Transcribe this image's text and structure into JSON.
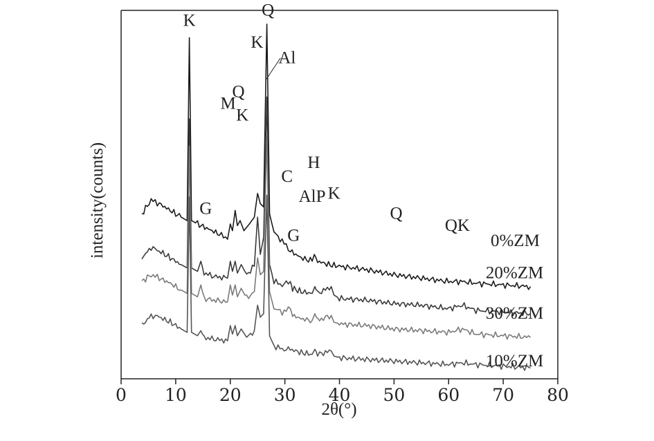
{
  "chart_data": {
    "type": "line",
    "xlabel": "2θ(°)",
    "ylabel": "intensity(counts)",
    "xlim": [
      0,
      80
    ],
    "xticks": [
      0,
      10,
      20,
      30,
      40,
      50,
      60,
      70,
      80
    ],
    "grid": false,
    "y_ticks_shown": false,
    "series": [
      {
        "name": "0%ZM",
        "color": "#1a1a1a",
        "baseline": 0.82,
        "points": [
          [
            3.8,
            0.86
          ],
          [
            5.5,
            0.94
          ],
          [
            7,
            0.92
          ],
          [
            9,
            0.88
          ],
          [
            11,
            0.84
          ],
          [
            12.1,
            0.82
          ],
          [
            12.5,
            1.9
          ],
          [
            12.9,
            0.82
          ],
          [
            14,
            0.8
          ],
          [
            16,
            0.77
          ],
          [
            18,
            0.74
          ],
          [
            19.5,
            0.71
          ],
          [
            20,
            0.8
          ],
          [
            20.4,
            0.76
          ],
          [
            20.9,
            0.88
          ],
          [
            21.3,
            0.79
          ],
          [
            21.8,
            0.82
          ],
          [
            22.5,
            0.76
          ],
          [
            23.5,
            0.8
          ],
          [
            24.4,
            0.84
          ],
          [
            25,
            0.98
          ],
          [
            25.5,
            0.92
          ],
          [
            26.1,
            0.9
          ],
          [
            26.7,
            1.98
          ],
          [
            27.2,
            0.86
          ],
          [
            28,
            0.75
          ],
          [
            29.5,
            0.7
          ],
          [
            31,
            0.64
          ],
          [
            33,
            0.6
          ],
          [
            35,
            0.58
          ],
          [
            35.4,
            0.62
          ],
          [
            36,
            0.58
          ],
          [
            38,
            0.56
          ],
          [
            40,
            0.55
          ],
          [
            45,
            0.53
          ],
          [
            50,
            0.5
          ],
          [
            55,
            0.48
          ],
          [
            60,
            0.46
          ],
          [
            62.5,
            0.46
          ],
          [
            65,
            0.45
          ],
          [
            70,
            0.44
          ],
          [
            75,
            0.43
          ]
        ]
      },
      {
        "name": "20%ZM",
        "color": "#3a3a3a",
        "baseline": 0.58,
        "points": [
          [
            3.8,
            0.6
          ],
          [
            5.5,
            0.66
          ],
          [
            7,
            0.64
          ],
          [
            9,
            0.6
          ],
          [
            11,
            0.56
          ],
          [
            12.1,
            0.54
          ],
          [
            12.5,
            1.42
          ],
          [
            12.9,
            0.54
          ],
          [
            14,
            0.52
          ],
          [
            14.6,
            0.58
          ],
          [
            15.2,
            0.51
          ],
          [
            17,
            0.49
          ],
          [
            19.5,
            0.48
          ],
          [
            20,
            0.58
          ],
          [
            20.4,
            0.52
          ],
          [
            20.9,
            0.58
          ],
          [
            21.3,
            0.51
          ],
          [
            22,
            0.56
          ],
          [
            23,
            0.5
          ],
          [
            24.4,
            0.55
          ],
          [
            25,
            0.84
          ],
          [
            25.5,
            0.62
          ],
          [
            26.1,
            0.72
          ],
          [
            26.7,
            1.55
          ],
          [
            27.2,
            0.56
          ],
          [
            28,
            0.46
          ],
          [
            29.5,
            0.44
          ],
          [
            31,
            0.46
          ],
          [
            31.4,
            0.42
          ],
          [
            33,
            0.4
          ],
          [
            35,
            0.39
          ],
          [
            35.5,
            0.43
          ],
          [
            36,
            0.39
          ],
          [
            38.5,
            0.43
          ],
          [
            39,
            0.38
          ],
          [
            40,
            0.36
          ],
          [
            45,
            0.35
          ],
          [
            50,
            0.33
          ],
          [
            55,
            0.32
          ],
          [
            60,
            0.3
          ],
          [
            62.5,
            0.32
          ],
          [
            65,
            0.29
          ],
          [
            70,
            0.28
          ],
          [
            75,
            0.27
          ]
        ]
      },
      {
        "name": "30%ZM",
        "color": "#7a7a7a",
        "baseline": 0.42,
        "points": [
          [
            3.8,
            0.46
          ],
          [
            5.5,
            0.5
          ],
          [
            7,
            0.48
          ],
          [
            9,
            0.45
          ],
          [
            11,
            0.41
          ],
          [
            12.1,
            0.39
          ],
          [
            12.5,
            1.26
          ],
          [
            12.9,
            0.39
          ],
          [
            14,
            0.37
          ],
          [
            14.6,
            0.44
          ],
          [
            15.2,
            0.36
          ],
          [
            17,
            0.35
          ],
          [
            19.5,
            0.34
          ],
          [
            20,
            0.44
          ],
          [
            20.4,
            0.38
          ],
          [
            20.9,
            0.44
          ],
          [
            21.3,
            0.37
          ],
          [
            22,
            0.42
          ],
          [
            23,
            0.36
          ],
          [
            24.4,
            0.4
          ],
          [
            25,
            0.6
          ],
          [
            25.5,
            0.5
          ],
          [
            26.1,
            0.52
          ],
          [
            26.7,
            1.32
          ],
          [
            27.2,
            0.4
          ],
          [
            28,
            0.3
          ],
          [
            29.5,
            0.28
          ],
          [
            31,
            0.3
          ],
          [
            31.4,
            0.26
          ],
          [
            33,
            0.24
          ],
          [
            35,
            0.23
          ],
          [
            35.5,
            0.27
          ],
          [
            36,
            0.23
          ],
          [
            38.5,
            0.26
          ],
          [
            39,
            0.22
          ],
          [
            40,
            0.21
          ],
          [
            45,
            0.2
          ],
          [
            50,
            0.18
          ],
          [
            55,
            0.17
          ],
          [
            60,
            0.16
          ],
          [
            62.5,
            0.18
          ],
          [
            65,
            0.15
          ],
          [
            70,
            0.14
          ],
          [
            75,
            0.13
          ]
        ]
      },
      {
        "name": "10%ZM",
        "color": "#555555",
        "baseline": 0.2,
        "points": [
          [
            3.8,
            0.2
          ],
          [
            5.5,
            0.26
          ],
          [
            7,
            0.25
          ],
          [
            9,
            0.22
          ],
          [
            11,
            0.18
          ],
          [
            12.1,
            0.16
          ],
          [
            12.5,
            0.96
          ],
          [
            12.9,
            0.16
          ],
          [
            14,
            0.14
          ],
          [
            14.6,
            0.17
          ],
          [
            15.2,
            0.13
          ],
          [
            17,
            0.12
          ],
          [
            19.5,
            0.11
          ],
          [
            20,
            0.2
          ],
          [
            20.4,
            0.15
          ],
          [
            20.9,
            0.2
          ],
          [
            21.3,
            0.14
          ],
          [
            22,
            0.18
          ],
          [
            23,
            0.13
          ],
          [
            24.4,
            0.17
          ],
          [
            25,
            0.32
          ],
          [
            25.5,
            0.25
          ],
          [
            26.1,
            0.27
          ],
          [
            26.7,
            0.97
          ],
          [
            27.2,
            0.14
          ],
          [
            28,
            0.08
          ],
          [
            29.5,
            0.06
          ],
          [
            31,
            0.06
          ],
          [
            33,
            0.04
          ],
          [
            35,
            0.03
          ],
          [
            35.5,
            0.06
          ],
          [
            36,
            0.03
          ],
          [
            38.5,
            0.05
          ],
          [
            39,
            0.02
          ],
          [
            40,
            0.01
          ],
          [
            45,
            0.0
          ],
          [
            50,
            -0.01
          ],
          [
            55,
            -0.02
          ],
          [
            60,
            -0.03
          ],
          [
            62.5,
            -0.02
          ],
          [
            65,
            -0.03
          ],
          [
            70,
            -0.04
          ],
          [
            75,
            -0.05
          ]
        ]
      }
    ],
    "peak_labels": [
      {
        "text": "K",
        "x": 12.5,
        "y": 1.97
      },
      {
        "text": "Q",
        "x": 26.9,
        "y": 2.03
      },
      {
        "text": "K",
        "x": 24.9,
        "y": 1.84
      },
      {
        "text": "Al",
        "x": 30.4,
        "y": 1.75
      },
      {
        "text": "M",
        "x": 19.6,
        "y": 1.48
      },
      {
        "text": "Q",
        "x": 21.5,
        "y": 1.55
      },
      {
        "text": "K",
        "x": 22.2,
        "y": 1.41
      },
      {
        "text": "C",
        "x": 30.4,
        "y": 1.05
      },
      {
        "text": "H",
        "x": 35.3,
        "y": 1.13
      },
      {
        "text": "AlP",
        "x": 35.0,
        "y": 0.93
      },
      {
        "text": "K",
        "x": 39.0,
        "y": 0.95
      },
      {
        "text": "Q",
        "x": 50.4,
        "y": 0.83
      },
      {
        "text": "QK",
        "x": 61.6,
        "y": 0.76
      },
      {
        "text": "G",
        "x": 15.5,
        "y": 0.86
      },
      {
        "text": "G",
        "x": 31.6,
        "y": 0.7
      }
    ],
    "series_labels": [
      {
        "text": "0%ZM",
        "x": 67.7,
        "y": 0.67
      },
      {
        "text": "20%ZM",
        "x": 66.8,
        "y": 0.48
      },
      {
        "text": "30%ZM",
        "x": 66.8,
        "y": 0.24
      },
      {
        "text": "10%ZM",
        "x": 66.8,
        "y": -0.04
      }
    ]
  }
}
